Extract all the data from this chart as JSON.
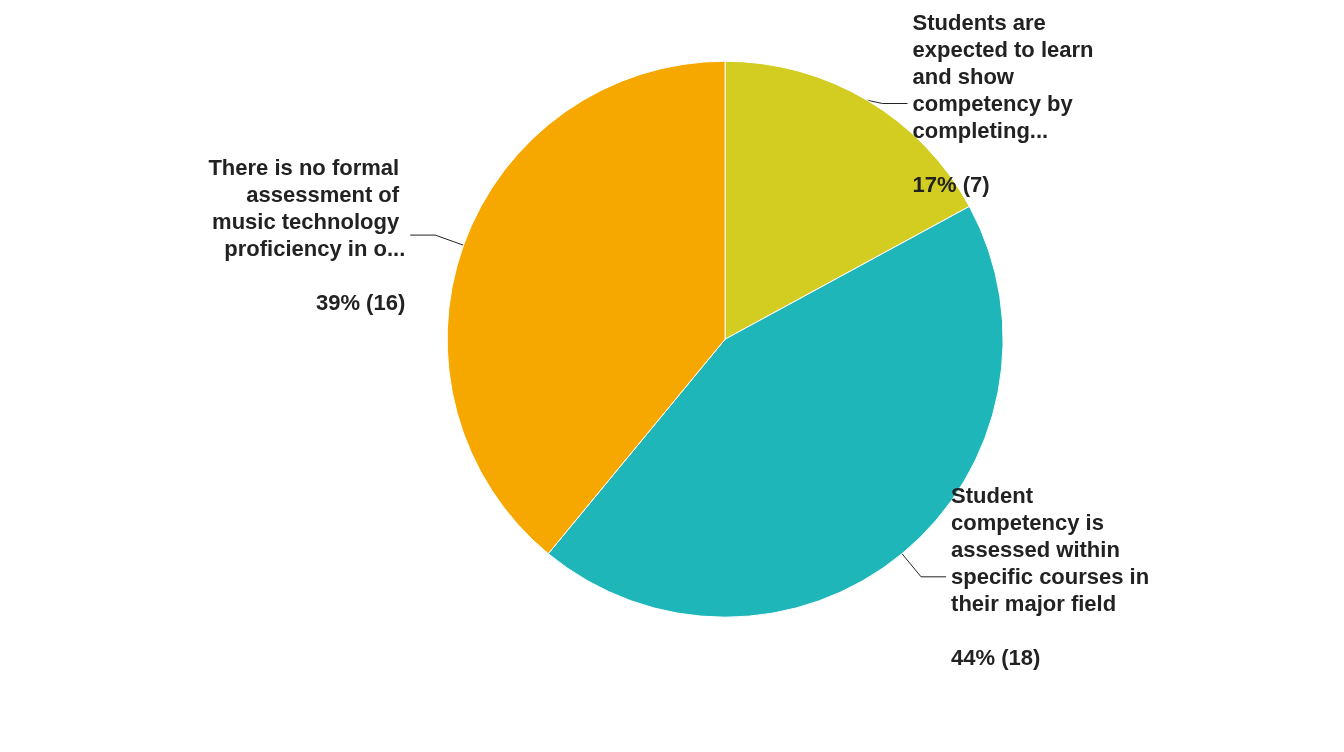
{
  "chart_data": {
    "type": "pie",
    "categories": [
      "Students are expected to learn and show competency by completing...",
      "Student competency is assessed within specific courses in their major field",
      "There is no formal assessment of music technology proficiency in o..."
    ],
    "values": [
      7,
      18,
      16
    ],
    "colors": [
      "#d3cd22",
      "#1fb6b9",
      "#f7a800"
    ],
    "value_labels": [
      "17% (7)",
      "44% (18)",
      "39% (16)"
    ]
  }
}
